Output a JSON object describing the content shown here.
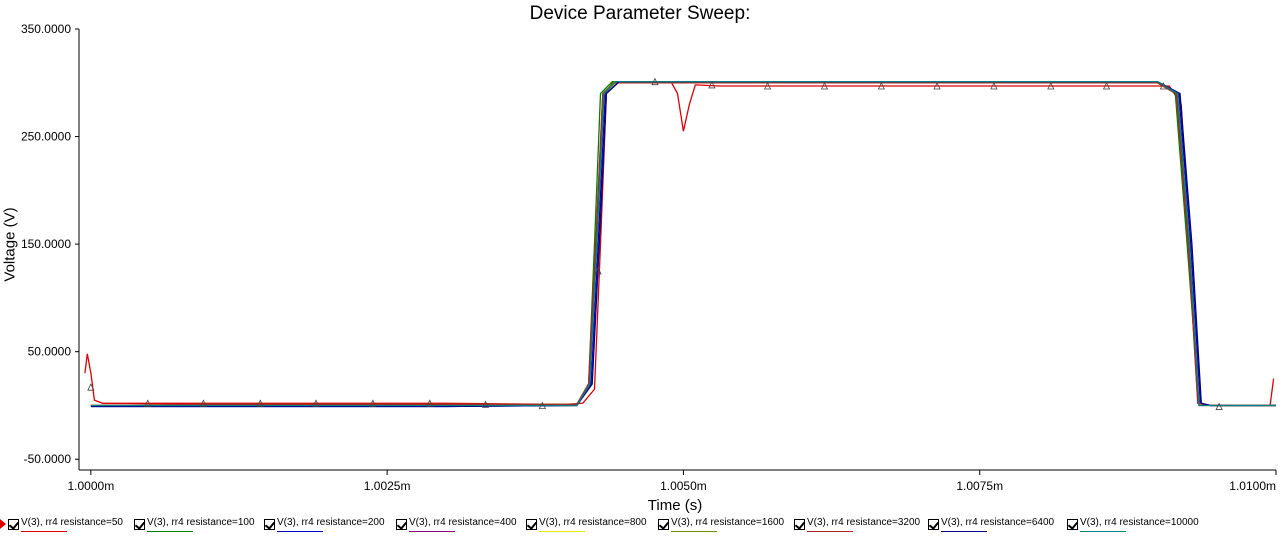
{
  "chart_data": {
    "type": "line",
    "title": "Device Parameter Sweep:",
    "xlabel": "Time (s)",
    "ylabel": "Voltage (V)",
    "xlim": [
      0.9999,
      1.01
    ],
    "ylim": [
      -60,
      350
    ],
    "x_ticks": [
      1.0,
      1.0025,
      1.005,
      1.0075,
      1.01
    ],
    "x_tick_labels": [
      "1.0000m",
      "1.0025m",
      "1.0050m",
      "1.0075m",
      "1.0100m"
    ],
    "y_ticks": [
      350,
      250,
      150,
      50,
      -50
    ],
    "y_tick_labels": [
      "350.0000",
      "250.0000",
      "150.0000",
      "50.0000",
      "-50.0000"
    ],
    "legend_position": "bottom",
    "series": [
      {
        "name": "V(3), rr4 resistance=50",
        "color": "#e00000",
        "points": [
          [
            0.99995,
            30
          ],
          [
            0.99997,
            48
          ],
          [
            1.0,
            30
          ],
          [
            1.00003,
            5
          ],
          [
            1.0001,
            2
          ],
          [
            1.0005,
            2
          ],
          [
            1.001,
            2
          ],
          [
            1.002,
            2
          ],
          [
            1.003,
            2
          ],
          [
            1.004,
            1
          ],
          [
            1.00415,
            2
          ],
          [
            1.00425,
            15
          ],
          [
            1.0043,
            150
          ],
          [
            1.00435,
            290
          ],
          [
            1.0044,
            300
          ],
          [
            1.0049,
            300
          ],
          [
            1.00495,
            290
          ],
          [
            1.005,
            255
          ],
          [
            1.00505,
            280
          ],
          [
            1.0051,
            298
          ],
          [
            1.0053,
            297
          ],
          [
            1.006,
            297
          ],
          [
            1.007,
            297
          ],
          [
            1.008,
            297
          ],
          [
            1.0088,
            297
          ],
          [
            1.0091,
            297
          ],
          [
            1.0092,
            280
          ],
          [
            1.0093,
            100
          ],
          [
            1.00935,
            0
          ],
          [
            1.00945,
            0
          ],
          [
            1.0099,
            0
          ],
          [
            1.00995,
            0
          ],
          [
            1.00998,
            25
          ]
        ]
      },
      {
        "name": "V(3), rr4 resistance=100",
        "color": "#008000",
        "points": [
          [
            1.0,
            0
          ],
          [
            1.001,
            0
          ],
          [
            1.002,
            0
          ],
          [
            1.003,
            0
          ],
          [
            1.0041,
            1
          ],
          [
            1.0042,
            20
          ],
          [
            1.00425,
            150
          ],
          [
            1.0043,
            290
          ],
          [
            1.0044,
            301
          ],
          [
            1.005,
            301
          ],
          [
            1.007,
            301
          ],
          [
            1.009,
            300
          ],
          [
            1.00915,
            290
          ],
          [
            1.00925,
            150
          ],
          [
            1.00935,
            2
          ],
          [
            1.00945,
            0
          ],
          [
            1.01,
            0
          ]
        ]
      },
      {
        "name": "V(3), rr4 resistance=200",
        "color": "#0000cc",
        "points": [
          [
            1.0,
            -1
          ],
          [
            1.001,
            -1
          ],
          [
            1.002,
            -1
          ],
          [
            1.003,
            -1
          ],
          [
            1.0041,
            0
          ],
          [
            1.00422,
            20
          ],
          [
            1.00428,
            150
          ],
          [
            1.00434,
            290
          ],
          [
            1.00445,
            301
          ],
          [
            1.005,
            301
          ],
          [
            1.007,
            301
          ],
          [
            1.009,
            301
          ],
          [
            1.00918,
            290
          ],
          [
            1.00928,
            150
          ],
          [
            1.00936,
            2
          ],
          [
            1.00945,
            0
          ],
          [
            1.01,
            0
          ]
        ]
      },
      {
        "name": "V(3), rr4 resistance=400",
        "color": "#800080",
        "points": [
          [
            1.0,
            0
          ],
          [
            1.001,
            0
          ],
          [
            1.002,
            0
          ],
          [
            1.003,
            0
          ],
          [
            1.0041,
            0
          ],
          [
            1.00421,
            20
          ],
          [
            1.00427,
            150
          ],
          [
            1.00433,
            290
          ],
          [
            1.00443,
            300
          ],
          [
            1.005,
            300
          ],
          [
            1.007,
            300
          ],
          [
            1.009,
            300
          ],
          [
            1.00917,
            290
          ],
          [
            1.00927,
            150
          ],
          [
            1.00935,
            2
          ],
          [
            1.00945,
            0
          ],
          [
            1.01,
            0
          ]
        ]
      },
      {
        "name": "V(3), rr4 resistance=800",
        "color": "#e8e800",
        "points": [
          [
            1.0,
            0
          ],
          [
            1.001,
            0
          ],
          [
            1.002,
            0
          ],
          [
            1.003,
            0
          ],
          [
            1.0041,
            0
          ],
          [
            1.00421,
            20
          ],
          [
            1.00427,
            150
          ],
          [
            1.00433,
            290
          ],
          [
            1.00443,
            300
          ],
          [
            1.005,
            300
          ],
          [
            1.007,
            300
          ],
          [
            1.009,
            300
          ],
          [
            1.00917,
            290
          ],
          [
            1.00927,
            150
          ],
          [
            1.00935,
            2
          ],
          [
            1.00945,
            0
          ],
          [
            1.01,
            0
          ]
        ]
      },
      {
        "name": "V(3), rr4 resistance=1600",
        "color": "#6b8e00",
        "points": [
          [
            1.0,
            0
          ],
          [
            1.001,
            1
          ],
          [
            1.002,
            1
          ],
          [
            1.003,
            1
          ],
          [
            1.0041,
            1
          ],
          [
            1.0042,
            20
          ],
          [
            1.00426,
            150
          ],
          [
            1.00432,
            290
          ],
          [
            1.00442,
            301
          ],
          [
            1.005,
            301
          ],
          [
            1.007,
            301
          ],
          [
            1.009,
            300
          ],
          [
            1.00916,
            290
          ],
          [
            1.00926,
            150
          ],
          [
            1.00934,
            2
          ],
          [
            1.00945,
            0
          ],
          [
            1.01,
            0
          ]
        ]
      },
      {
        "name": "V(3), rr4 resistance=3200",
        "color": "#b22222",
        "points": [
          [
            1.0,
            0
          ],
          [
            1.001,
            1
          ],
          [
            1.002,
            1
          ],
          [
            1.003,
            1
          ],
          [
            1.0041,
            1
          ],
          [
            1.0042,
            20
          ],
          [
            1.00426,
            150
          ],
          [
            1.00432,
            290
          ],
          [
            1.00442,
            300
          ],
          [
            1.005,
            300
          ],
          [
            1.007,
            300
          ],
          [
            1.009,
            300
          ],
          [
            1.00916,
            290
          ],
          [
            1.00926,
            150
          ],
          [
            1.00934,
            2
          ],
          [
            1.00945,
            0
          ],
          [
            1.01,
            0
          ]
        ]
      },
      {
        "name": "V(3), rr4 resistance=6400",
        "color": "#00008b",
        "points": [
          [
            1.0,
            -1
          ],
          [
            1.001,
            -1
          ],
          [
            1.002,
            -1
          ],
          [
            1.003,
            -1
          ],
          [
            1.0041,
            0
          ],
          [
            1.00423,
            20
          ],
          [
            1.00429,
            150
          ],
          [
            1.00435,
            290
          ],
          [
            1.00446,
            301
          ],
          [
            1.005,
            301
          ],
          [
            1.007,
            301
          ],
          [
            1.009,
            301
          ],
          [
            1.00919,
            290
          ],
          [
            1.00929,
            150
          ],
          [
            1.00937,
            2
          ],
          [
            1.00945,
            0
          ],
          [
            1.01,
            0
          ]
        ]
      },
      {
        "name": "V(3), rr4 resistance=10000",
        "color": "#008080",
        "points": [
          [
            1.0,
            0
          ],
          [
            1.001,
            0
          ],
          [
            1.002,
            0
          ],
          [
            1.003,
            0
          ],
          [
            1.0041,
            0
          ],
          [
            1.00421,
            20
          ],
          [
            1.00427,
            150
          ],
          [
            1.00433,
            290
          ],
          [
            1.00443,
            301
          ],
          [
            1.005,
            301
          ],
          [
            1.007,
            301
          ],
          [
            1.009,
            301
          ],
          [
            1.00917,
            290
          ],
          [
            1.00927,
            150
          ],
          [
            1.00935,
            0
          ],
          [
            1.00945,
            0
          ],
          [
            1.01,
            0
          ]
        ]
      }
    ],
    "markers": [
      [
        1.0,
        17
      ],
      [
        1.00048,
        2
      ],
      [
        1.00095,
        2
      ],
      [
        1.00143,
        2
      ],
      [
        1.0019,
        2
      ],
      [
        1.00238,
        2
      ],
      [
        1.00286,
        2
      ],
      [
        1.00333,
        1
      ],
      [
        1.00381,
        0
      ],
      [
        1.00428,
        125
      ],
      [
        1.00476,
        301
      ],
      [
        1.00524,
        298
      ],
      [
        1.00571,
        297
      ],
      [
        1.00619,
        297
      ],
      [
        1.00667,
        297
      ],
      [
        1.00714,
        297
      ],
      [
        1.00762,
        297
      ],
      [
        1.0081,
        297
      ],
      [
        1.00857,
        297
      ],
      [
        1.00905,
        297
      ],
      [
        1.00952,
        -1
      ]
    ]
  }
}
